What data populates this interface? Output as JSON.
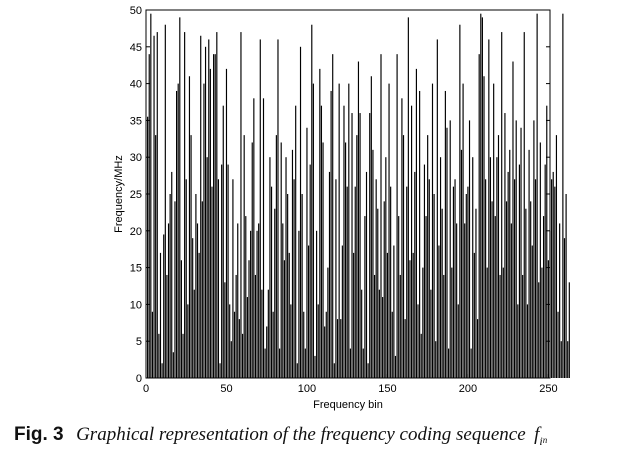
{
  "chart_data": {
    "type": "bar",
    "xlabel": "Frequency bin",
    "ylabel": "Frequency/MHz",
    "xlim": [
      0,
      251
    ],
    "ylim": [
      0,
      50
    ],
    "xticks": [
      0,
      50,
      100,
      150,
      200,
      250
    ],
    "yticks": [
      0,
      5,
      10,
      15,
      20,
      25,
      30,
      35,
      40,
      45,
      50
    ],
    "grid": false,
    "x_start": 1,
    "values": [
      35.5,
      44,
      49.5,
      9,
      46.5,
      33,
      47,
      6,
      17,
      2,
      19.5,
      48,
      14,
      21,
      25,
      28,
      3.5,
      24,
      39,
      40,
      49,
      16,
      6,
      47,
      27,
      10,
      41,
      33,
      19,
      12,
      25,
      21,
      17,
      46.5,
      24,
      40,
      45,
      30,
      46,
      42,
      26,
      44,
      44,
      47,
      27,
      2,
      29,
      37,
      13,
      42,
      29,
      10,
      5,
      27,
      9,
      14,
      21,
      8,
      47,
      6,
      33,
      22,
      11,
      16,
      20,
      32,
      38,
      14,
      20,
      21,
      46,
      12,
      38,
      4,
      7,
      12,
      30,
      26,
      9,
      23,
      33,
      46,
      4,
      32,
      21,
      16,
      30,
      25,
      17,
      10,
      31,
      27,
      37,
      2,
      20,
      45,
      25,
      9,
      4,
      34,
      18,
      29,
      48,
      40,
      3,
      20,
      10,
      42,
      37,
      32,
      7,
      9,
      15,
      28,
      39,
      44,
      2,
      27,
      8,
      40,
      8,
      18,
      37,
      32,
      26,
      40,
      4,
      36,
      17,
      26,
      33,
      43,
      36,
      12,
      4,
      22,
      28,
      2,
      36,
      41,
      31,
      14,
      27,
      23,
      12,
      44,
      11,
      24,
      30,
      17,
      40,
      26,
      9,
      18,
      3,
      44,
      22,
      14,
      38,
      33,
      8,
      26,
      49,
      16,
      37,
      17,
      28,
      42,
      10,
      39,
      6,
      15,
      29,
      22,
      33,
      27,
      12,
      40,
      25,
      5,
      46,
      18,
      30,
      23,
      14,
      39,
      34,
      4,
      35,
      15,
      26,
      27,
      21,
      10,
      48,
      31,
      40,
      21,
      25,
      26,
      35,
      4,
      30,
      17,
      23,
      8,
      44,
      49.5,
      49,
      41,
      27,
      15,
      46,
      30,
      24,
      40,
      22,
      30,
      33,
      14,
      47,
      15,
      36,
      24,
      28,
      31,
      21,
      43,
      27,
      35,
      10,
      29,
      34,
      14,
      47,
      23,
      10,
      31,
      24,
      18,
      35,
      27,
      49.5,
      13,
      32,
      15,
      22,
      29,
      37,
      16,
      20,
      27,
      28,
      26,
      33,
      9,
      21,
      5,
      49.5,
      19,
      25,
      5,
      13
    ]
  },
  "caption": {
    "label": "Fig. 3",
    "text": "Graphical representation of the frequency coding sequence",
    "symbol": "f",
    "sub": "i",
    "subsub": "n"
  }
}
